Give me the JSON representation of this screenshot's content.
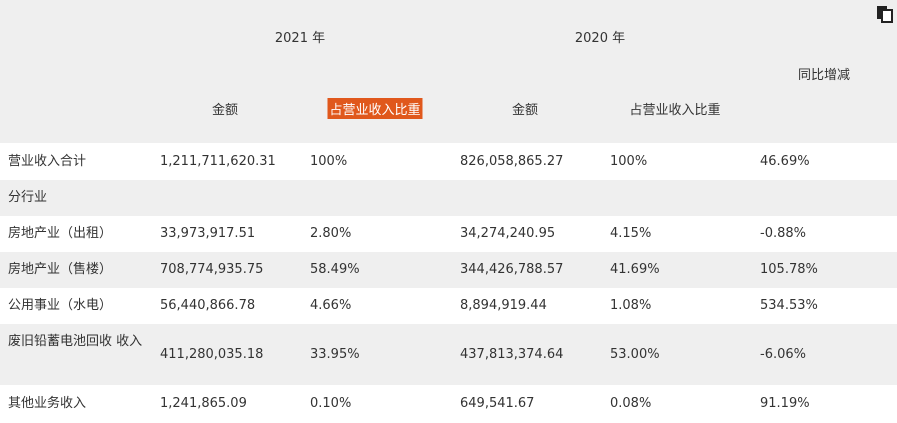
{
  "header": {
    "year_2021": "2021 年",
    "year_2020": "2020 年",
    "change": "同比增减",
    "amount_2021": "金额",
    "ratio_2021": "占营业收入比重",
    "amount_2020": "金额",
    "ratio_2020": "占营业收入比重"
  },
  "table": {
    "rows": [
      [
        "营业收入合计",
        "1,211,711,620.31",
        "100%",
        "826,058,865.27",
        "100%",
        "46.69%"
      ],
      [
        "分行业"
      ],
      [
        "房地产业（出租）",
        "33,973,917.51",
        "2.80%",
        "34,274,240.95",
        "4.15%",
        "-0.88%"
      ],
      [
        "房地产业（售楼）",
        "708,774,935.75",
        "58.49%",
        "344,426,788.57",
        "41.69%",
        "105.78%"
      ],
      [
        "公用事业（水电）",
        "56,440,866.78",
        "4.66%",
        "8,894,919.44",
        "1.08%",
        "534.53%"
      ],
      [
        "废旧铅蓄电池回收 收入",
        "411,280,035.18",
        "33.95%",
        "437,813,374.64",
        "53.00%",
        "-6.06%"
      ],
      [
        "其他业务收入",
        "1,241,865.09",
        "0.10%",
        "649,541.67",
        "0.08%",
        "91.19%"
      ]
    ]
  }
}
